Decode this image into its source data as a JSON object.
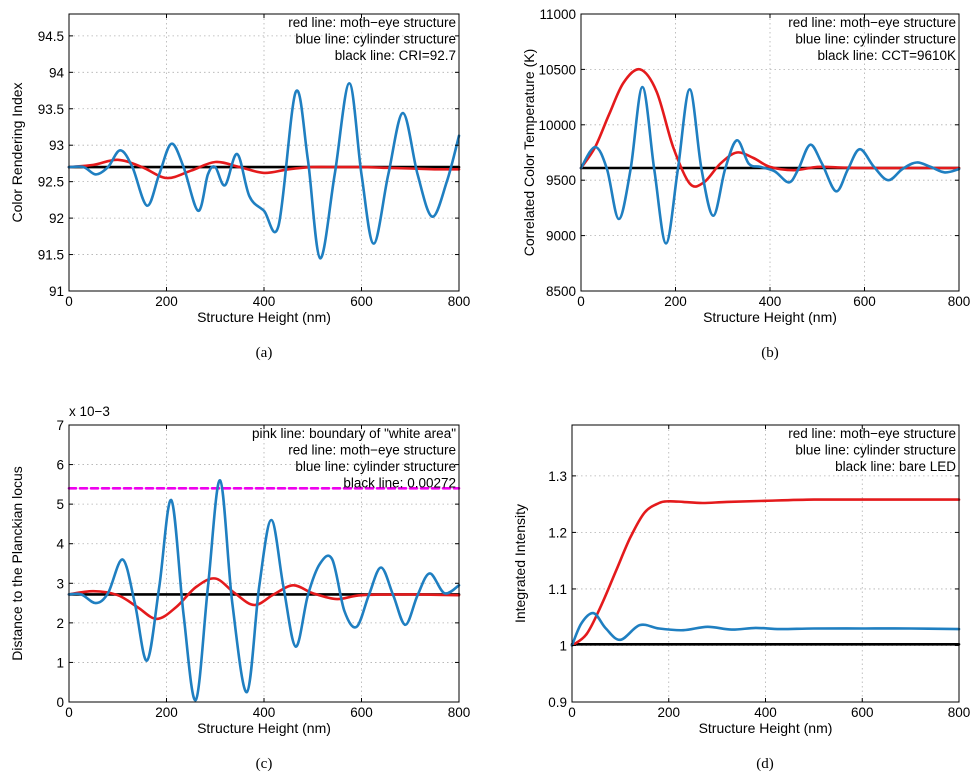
{
  "colors": {
    "red": "#e41a1c",
    "blue": "#1f7fc1",
    "black": "#000000",
    "pink": "#ee00ee"
  },
  "chart_data": [
    {
      "id": "a",
      "type": "line",
      "caption": "(a)",
      "xlabel": "Structure Height (nm)",
      "ylabel": "Color Rendering Index",
      "xlim": [
        0,
        800
      ],
      "ylim": [
        91,
        94.8
      ],
      "xticks": [
        0,
        200,
        400,
        600,
        800
      ],
      "xtick_labels": [
        "0",
        "200",
        "400",
        "600",
        "800"
      ],
      "yticks": [
        91,
        91.5,
        92,
        92.5,
        93,
        93.5,
        94,
        94.5
      ],
      "ytick_labels": [
        "91",
        "91.5",
        "92",
        "92.5",
        "93",
        "93.5",
        "94",
        "94.5"
      ],
      "grid": true,
      "exponent_label": "",
      "annotations": [
        "red line: moth−eye structure",
        "blue line: cylinder structure",
        "black line: CRI=92.7"
      ],
      "series": [
        {
          "color": "black",
          "x": [
            0,
            800
          ],
          "y": [
            92.7,
            92.7
          ]
        },
        {
          "color": "red",
          "x": [
            0,
            50,
            100,
            150,
            200,
            250,
            300,
            350,
            400,
            450,
            500,
            550,
            600,
            650,
            700,
            750,
            800
          ],
          "y": [
            92.7,
            92.73,
            92.8,
            92.7,
            92.55,
            92.65,
            92.77,
            92.7,
            92.62,
            92.67,
            92.7,
            92.7,
            92.7,
            92.69,
            92.68,
            92.67,
            92.67
          ]
        },
        {
          "color": "blue",
          "x": [
            0,
            30,
            55,
            80,
            105,
            130,
            160,
            185,
            210,
            235,
            265,
            285,
            300,
            320,
            345,
            370,
            400,
            430,
            465,
            490,
            515,
            545,
            575,
            600,
            625,
            655,
            685,
            715,
            745,
            775,
            800
          ],
          "y": [
            92.7,
            92.7,
            92.6,
            92.7,
            92.93,
            92.7,
            92.17,
            92.6,
            93.02,
            92.7,
            92.1,
            92.6,
            92.7,
            92.45,
            92.88,
            92.3,
            92.1,
            91.9,
            93.73,
            92.8,
            91.45,
            92.6,
            93.85,
            92.6,
            91.65,
            92.6,
            93.44,
            92.6,
            92.02,
            92.5,
            93.13
          ]
        }
      ]
    },
    {
      "id": "b",
      "type": "line",
      "caption": "(b)",
      "xlabel": "Structure Height (nm)",
      "ylabel": "Correlated Color Temperature (K)",
      "xlim": [
        0,
        800
      ],
      "ylim": [
        8500,
        11000
      ],
      "xticks": [
        0,
        200,
        400,
        600,
        800
      ],
      "xtick_labels": [
        "0",
        "200",
        "400",
        "600",
        "800"
      ],
      "yticks": [
        8500,
        9000,
        9500,
        10000,
        10500,
        11000
      ],
      "ytick_labels": [
        "8500",
        "9000",
        "9500",
        "10000",
        "10500",
        "11000"
      ],
      "grid": true,
      "exponent_label": "",
      "annotations": [
        "red line: moth−eye structure",
        "blue line: cylinder structure",
        "black line: CCT=9610K"
      ],
      "series": [
        {
          "color": "black",
          "x": [
            0,
            800
          ],
          "y": [
            9610,
            9610
          ]
        },
        {
          "color": "red",
          "x": [
            0,
            30,
            60,
            90,
            125,
            160,
            195,
            230,
            260,
            295,
            330,
            365,
            400,
            450,
            500,
            550,
            600,
            700,
            800
          ],
          "y": [
            9610,
            9800,
            10100,
            10380,
            10500,
            10300,
            9800,
            9470,
            9480,
            9650,
            9750,
            9700,
            9620,
            9590,
            9620,
            9615,
            9610,
            9610,
            9610
          ]
        },
        {
          "color": "blue",
          "x": [
            0,
            30,
            55,
            80,
            105,
            130,
            155,
            180,
            205,
            230,
            255,
            280,
            305,
            330,
            355,
            380,
            410,
            440,
            460,
            485,
            510,
            540,
            565,
            590,
            620,
            650,
            680,
            710,
            740,
            770,
            800
          ],
          "y": [
            9610,
            9800,
            9600,
            9150,
            9600,
            10340,
            9600,
            8930,
            9600,
            10320,
            9600,
            9180,
            9600,
            9860,
            9650,
            9620,
            9580,
            9480,
            9600,
            9820,
            9650,
            9400,
            9600,
            9780,
            9620,
            9500,
            9600,
            9660,
            9620,
            9570,
            9600
          ]
        }
      ]
    },
    {
      "id": "c",
      "type": "line",
      "caption": "(c)",
      "xlabel": "Structure Height (nm)",
      "ylabel": "Distance to the Planckian locus",
      "xlim": [
        0,
        800
      ],
      "ylim": [
        0,
        7
      ],
      "xticks": [
        0,
        200,
        400,
        600,
        800
      ],
      "xtick_labels": [
        "0",
        "200",
        "400",
        "600",
        "800"
      ],
      "yticks": [
        0,
        1,
        2,
        3,
        4,
        5,
        6,
        7
      ],
      "ytick_labels": [
        "0",
        "1",
        "2",
        "3",
        "4",
        "5",
        "6",
        "7"
      ],
      "grid": true,
      "exponent_label": "x 10−3",
      "annotations": [
        "pink line: boundary of \"white area\"",
        "red line: moth−eye structure",
        "blue line: cylinder structure",
        "black line: 0.00272"
      ],
      "series": [
        {
          "color": "pink",
          "dashed": true,
          "x": [
            0,
            800
          ],
          "y": [
            5.4,
            5.4
          ]
        },
        {
          "color": "black",
          "x": [
            0,
            800
          ],
          "y": [
            2.72,
            2.72
          ]
        },
        {
          "color": "red",
          "x": [
            0,
            50,
            100,
            140,
            180,
            220,
            260,
            300,
            340,
            380,
            420,
            460,
            500,
            550,
            600,
            700,
            800
          ],
          "y": [
            2.72,
            2.8,
            2.7,
            2.4,
            2.1,
            2.4,
            2.9,
            3.12,
            2.75,
            2.45,
            2.72,
            2.95,
            2.75,
            2.6,
            2.7,
            2.72,
            2.7
          ]
        },
        {
          "color": "blue",
          "x": [
            0,
            25,
            55,
            80,
            110,
            135,
            160,
            185,
            210,
            235,
            260,
            285,
            310,
            335,
            365,
            390,
            415,
            440,
            465,
            490,
            515,
            540,
            565,
            590,
            615,
            640,
            665,
            690,
            715,
            740,
            770,
            800
          ],
          "y": [
            2.72,
            2.72,
            2.5,
            2.75,
            3.6,
            2.5,
            1.05,
            2.9,
            5.1,
            2.2,
            0.05,
            2.9,
            5.6,
            2.5,
            0.25,
            2.9,
            4.6,
            2.9,
            1.4,
            2.7,
            3.5,
            3.6,
            2.3,
            1.9,
            2.7,
            3.4,
            2.7,
            1.95,
            2.7,
            3.25,
            2.75,
            2.95
          ]
        }
      ]
    },
    {
      "id": "d",
      "type": "line",
      "caption": "(d)",
      "xlabel": "Structure Height (nm)",
      "ylabel": "Integrated Intensity",
      "xlim": [
        0,
        800
      ],
      "ylim": [
        0.9,
        1.39
      ],
      "xticks": [
        0,
        200,
        400,
        600,
        800
      ],
      "xtick_labels": [
        "0",
        "200",
        "400",
        "600",
        "800"
      ],
      "yticks": [
        0.9,
        1.0,
        1.1,
        1.2,
        1.3
      ],
      "ytick_labels": [
        "0.9",
        "1",
        "1.1",
        "1.2",
        "1.3"
      ],
      "grid": true,
      "exponent_label": "",
      "annotations": [
        "red line: moth−eye structure",
        "blue line: cylinder structure",
        "black line: bare LED"
      ],
      "series": [
        {
          "color": "black",
          "x": [
            0,
            800
          ],
          "y": [
            1.002,
            1.002
          ]
        },
        {
          "color": "red",
          "x": [
            0,
            30,
            60,
            90,
            120,
            150,
            180,
            200,
            230,
            270,
            320,
            400,
            500,
            600,
            700,
            800
          ],
          "y": [
            1.0,
            1.02,
            1.07,
            1.13,
            1.19,
            1.235,
            1.252,
            1.255,
            1.254,
            1.252,
            1.254,
            1.256,
            1.258,
            1.258,
            1.258,
            1.258
          ]
        },
        {
          "color": "blue",
          "x": [
            0,
            20,
            45,
            70,
            100,
            140,
            180,
            230,
            280,
            330,
            380,
            430,
            500,
            600,
            700,
            800
          ],
          "y": [
            1.0,
            1.04,
            1.057,
            1.03,
            1.01,
            1.036,
            1.03,
            1.027,
            1.033,
            1.028,
            1.031,
            1.029,
            1.03,
            1.03,
            1.03,
            1.029
          ]
        }
      ]
    }
  ]
}
